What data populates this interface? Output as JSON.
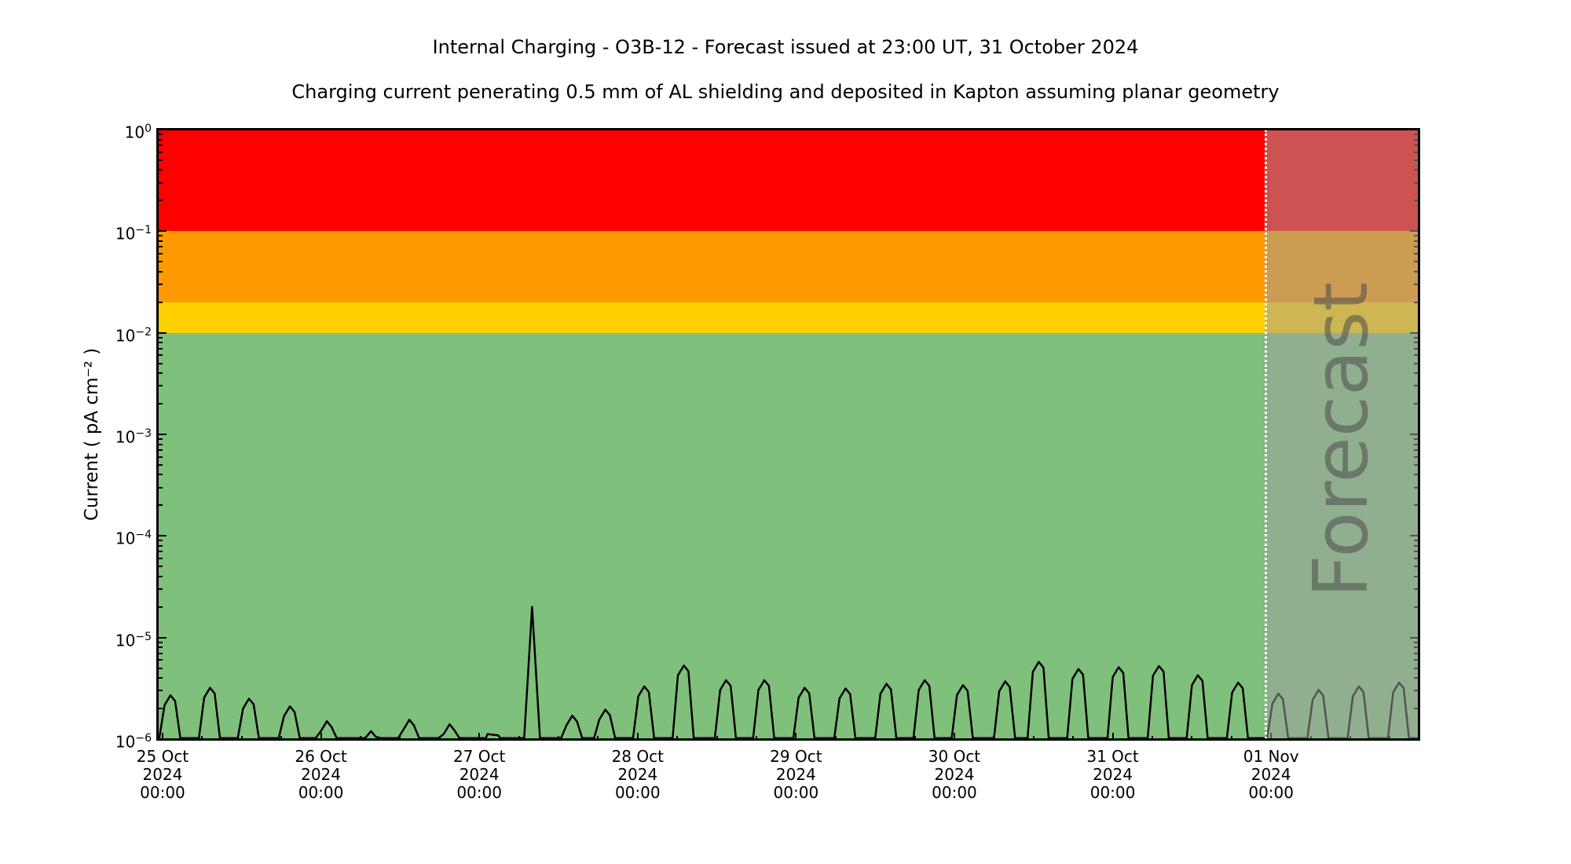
{
  "title": "Internal Charging - O3B-12 - Forecast issued at 23:00 UT, 31 October 2024",
  "subtitle": "Charging current penerating 0.5 mm of AL shielding and deposited in Kapton assuming planar geometry",
  "chart_data": {
    "type": "line",
    "title": "Internal Charging - O3B-12 - Forecast issued at 23:00 UT, 31 October 2024",
    "subtitle": "Charging current penerating 0.5 mm of AL shielding and deposited in Kapton assuming planar geometry",
    "ylabel": "Current ( pA cm⁻² )",
    "y_scale": "log",
    "ylim": [
      1e-06,
      1
    ],
    "decades": 6,
    "x_domain_hours": [
      -0.71,
      190.36
    ],
    "x_unit": "hours since 25 Oct 2024 00:00",
    "grid": false,
    "y_ticks": [
      {
        "value": 1,
        "base": "10",
        "exp": "0"
      },
      {
        "value": 0.1,
        "base": "10",
        "exp": "−1"
      },
      {
        "value": 0.01,
        "base": "10",
        "exp": "−2"
      },
      {
        "value": 0.001,
        "base": "10",
        "exp": "−3"
      },
      {
        "value": 0.0001,
        "base": "10",
        "exp": "−4"
      },
      {
        "value": 1e-05,
        "base": "10",
        "exp": "−5"
      },
      {
        "value": 1e-06,
        "base": "10",
        "exp": "−6"
      }
    ],
    "x_ticks": [
      {
        "hour": 0,
        "date": "25 Oct",
        "year": "2024",
        "time": "00:00"
      },
      {
        "hour": 24,
        "date": "26 Oct",
        "year": "2024",
        "time": "00:00"
      },
      {
        "hour": 48,
        "date": "27 Oct",
        "year": "2024",
        "time": "00:00"
      },
      {
        "hour": 72,
        "date": "28 Oct",
        "year": "2024",
        "time": "00:00"
      },
      {
        "hour": 96,
        "date": "29 Oct",
        "year": "2024",
        "time": "00:00"
      },
      {
        "hour": 120,
        "date": "30 Oct",
        "year": "2024",
        "time": "00:00"
      },
      {
        "hour": 144,
        "date": "31 Oct",
        "year": "2024",
        "time": "00:00"
      },
      {
        "hour": 168,
        "date": "01 Nov",
        "year": "2024",
        "time": "00:00"
      }
    ],
    "bands": [
      {
        "name": "red-alert",
        "from": 0.1,
        "to": 1,
        "color": "#ff0000"
      },
      {
        "name": "orange-warning",
        "from": 0.02,
        "to": 0.1,
        "color": "#ff9900"
      },
      {
        "name": "yellow-caution",
        "from": 0.01,
        "to": 0.02,
        "color": "#ffd000"
      },
      {
        "name": "green-nominal",
        "from": 1e-06,
        "to": 0.01,
        "color": "#7fc07c"
      }
    ],
    "forecast": {
      "label": "Forecast",
      "start_hour": 167,
      "overlay_color": "rgba(160,160,160,0.52)"
    },
    "baseline": 1e-06,
    "series": [
      {
        "name": "charging-current",
        "color": "#000000",
        "bumps": [
          [
            1.4,
            2.7e-06
          ],
          [
            7.4,
            3.2e-06
          ],
          [
            13.3,
            2.5e-06
          ],
          [
            19.5,
            2.1e-06
          ],
          [
            25.1,
            1.5e-06
          ],
          [
            31.8,
            1.2e-06
          ],
          [
            37.6,
            1.55e-06
          ],
          [
            43.7,
            1.4e-06
          ],
          [
            50.0,
            1.12e-06,
            "flat"
          ],
          [
            56.0,
            2e-05,
            "sharp"
          ],
          [
            62.3,
            1.7e-06
          ],
          [
            67.3,
            1.95e-06
          ],
          [
            73.2,
            3.3e-06
          ],
          [
            79.2,
            5.3e-06
          ],
          [
            85.6,
            3.8e-06
          ],
          [
            91.4,
            3.8e-06
          ],
          [
            97.5,
            3.2e-06
          ],
          [
            103.7,
            3.15e-06
          ],
          [
            109.9,
            3.5e-06
          ],
          [
            115.7,
            3.8e-06
          ],
          [
            121.5,
            3.4e-06
          ],
          [
            127.9,
            3.7e-06
          ],
          [
            133.0,
            5.75e-06
          ],
          [
            139.0,
            4.9e-06
          ],
          [
            145.1,
            5.1e-06
          ],
          [
            151.2,
            5.25e-06
          ],
          [
            157.1,
            4.25e-06
          ],
          [
            163.2,
            3.6e-06
          ],
          [
            169.3,
            2.8e-06
          ],
          [
            175.4,
            3.05e-06
          ],
          [
            181.5,
            3.3e-06
          ],
          [
            187.6,
            3.6e-06
          ]
        ]
      }
    ]
  }
}
